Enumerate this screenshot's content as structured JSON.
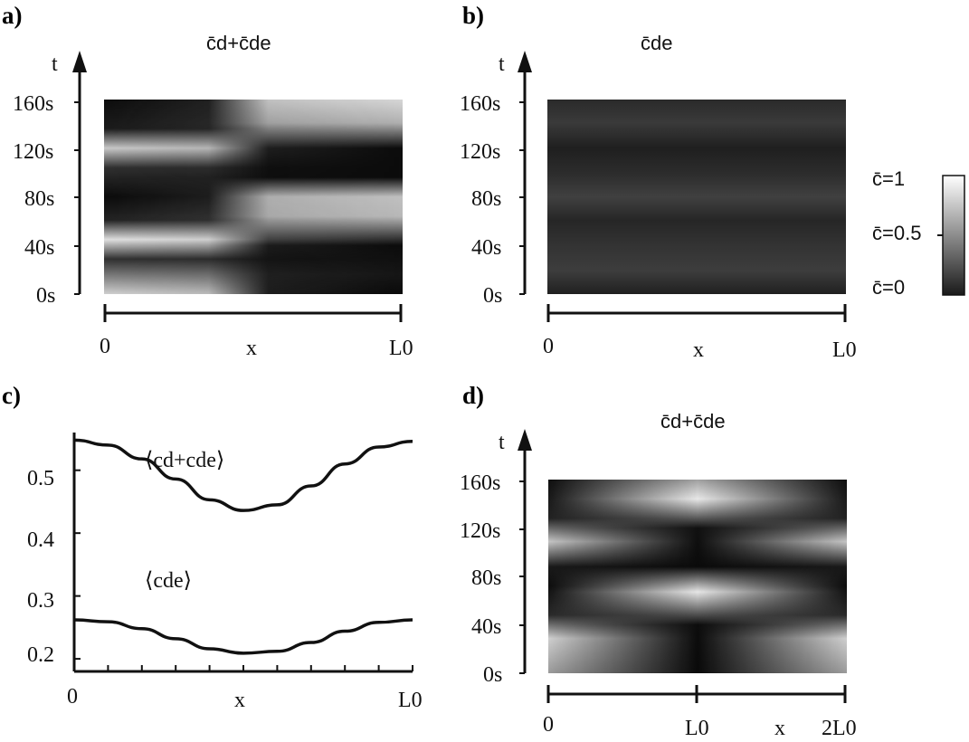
{
  "panels": {
    "a": {
      "label": "a)",
      "title": "c̄d+c̄de",
      "t_axis_label": "t",
      "x_axis_label": "x",
      "y_ticks": [
        "160s",
        "120s",
        "80s",
        "40s",
        "0s"
      ],
      "x_ticks": [
        "0",
        "L0"
      ]
    },
    "b": {
      "label": "b)",
      "title": "c̄de",
      "t_axis_label": "t",
      "x_axis_label": "x",
      "y_ticks": [
        "160s",
        "120s",
        "80s",
        "40s",
        "0s"
      ],
      "x_ticks": [
        "0",
        "L0"
      ]
    },
    "c": {
      "label": "c)",
      "x_axis_label": "x",
      "x_ticks": [
        "0",
        "L0"
      ],
      "y_ticks": [
        "0.5",
        "0.4",
        "0.3",
        "0.2"
      ],
      "series_labels": [
        "⟨cd+cde⟩",
        "⟨cde⟩"
      ]
    },
    "d": {
      "label": "d)",
      "title": "c̄d+c̄de",
      "t_axis_label": "t",
      "x_axis_label": "x",
      "y_ticks": [
        "160s",
        "120s",
        "80s",
        "40s",
        "0s"
      ],
      "x_ticks": [
        "0",
        "L0",
        "2L0"
      ]
    },
    "colorbar": {
      "labels": [
        "c̄=1",
        "c̄=0.5",
        "c̄=0"
      ],
      "gradient": [
        "#ffffff",
        "#1a1a1a"
      ]
    }
  },
  "chart_data": [
    {
      "id": "a",
      "type": "heatmap",
      "title": "c̄d+c̄de",
      "xlabel": "x",
      "ylabel": "t",
      "xlim": [
        0,
        1
      ],
      "ylim": [
        0,
        160
      ],
      "colorscale": "grayscale 0=black 1=white",
      "pattern": "traveling wave, period ~80s, brightness alternating left-to-right"
    },
    {
      "id": "b",
      "type": "heatmap",
      "title": "c̄de",
      "xlabel": "x",
      "ylabel": "t",
      "xlim": [
        0,
        1
      ],
      "ylim": [
        0,
        160
      ],
      "colorscale": "grayscale 0=black 1=white",
      "pattern": "low-amplitude dark gray bands, period ~80s"
    },
    {
      "id": "c",
      "type": "line",
      "xlabel": "x",
      "xlim": [
        0,
        1
      ],
      "ylim": [
        0.18,
        0.56
      ],
      "series": [
        {
          "name": "⟨cd+cde⟩",
          "x": [
            0,
            0.1,
            0.2,
            0.3,
            0.4,
            0.5,
            0.6,
            0.7,
            0.8,
            0.9,
            1.0
          ],
          "values": [
            0.548,
            0.54,
            0.518,
            0.486,
            0.453,
            0.436,
            0.445,
            0.475,
            0.51,
            0.537,
            0.546
          ]
        },
        {
          "name": "⟨cde⟩",
          "x": [
            0,
            0.1,
            0.2,
            0.3,
            0.4,
            0.5,
            0.6,
            0.7,
            0.8,
            0.9,
            1.0
          ],
          "values": [
            0.262,
            0.259,
            0.248,
            0.232,
            0.216,
            0.209,
            0.212,
            0.226,
            0.244,
            0.258,
            0.262
          ]
        }
      ]
    },
    {
      "id": "d",
      "type": "heatmap",
      "title": "c̄d+c̄de",
      "xlabel": "x",
      "ylabel": "t",
      "xlim": [
        0,
        2
      ],
      "ylim": [
        0,
        160
      ],
      "colorscale": "grayscale 0=black 1=white",
      "pattern": "symmetric standing wave about L0, period ~80s"
    }
  ]
}
